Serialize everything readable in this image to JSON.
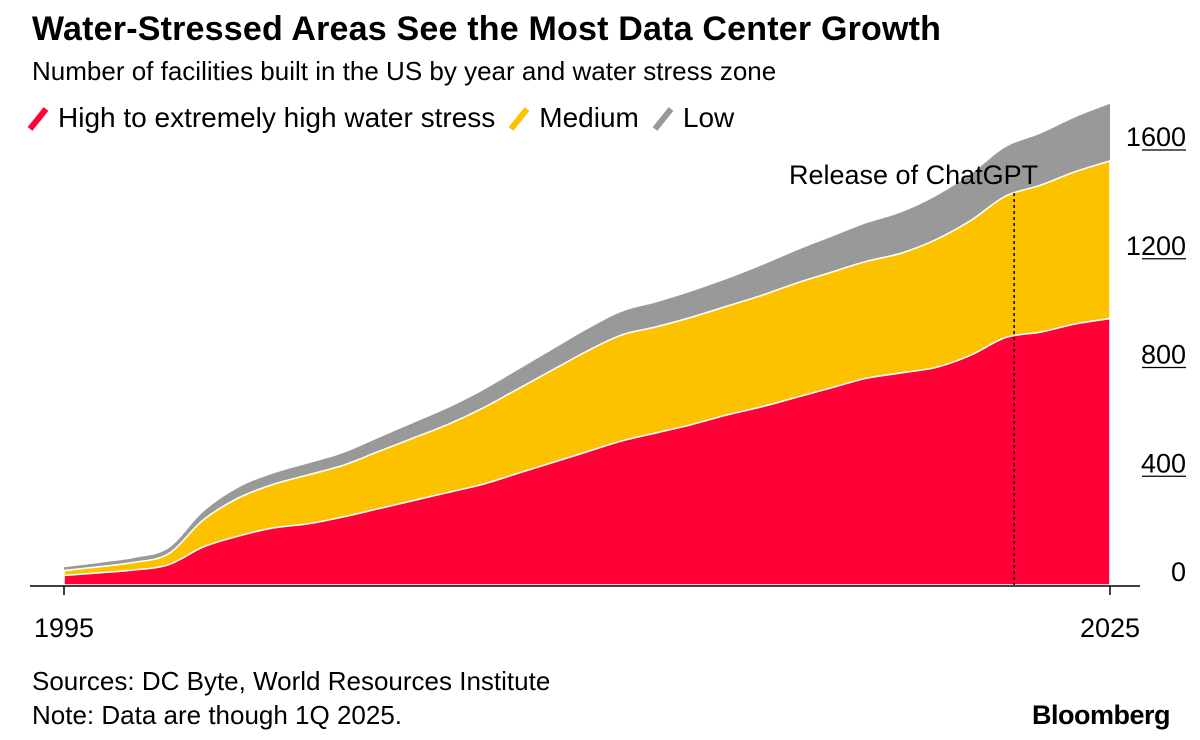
{
  "header": {
    "title": "Water-Stressed Areas See the Most Data Center Growth",
    "subtitle": "Number of facilities built in the US by year and water stress zone"
  },
  "footer": {
    "sources": "Sources: DC Byte, World Resources Institute",
    "note": "Note: Data are though 1Q 2025.",
    "brand": "Bloomberg"
  },
  "chart_data": {
    "type": "area",
    "stacked": true,
    "x": [
      1995,
      1996,
      1997,
      1998,
      1999,
      2000,
      2001,
      2002,
      2003,
      2004,
      2005,
      2006,
      2007,
      2008,
      2009,
      2010,
      2011,
      2012,
      2013,
      2014,
      2015,
      2016,
      2017,
      2018,
      2019,
      2020,
      2021,
      2022,
      2023,
      2024,
      2025
    ],
    "x_tick_labels": [
      "1995",
      "2025"
    ],
    "series": [
      {
        "name": "High to extremely high water stress",
        "color": "#ff0037",
        "values": [
          35,
          45,
          55,
          75,
          140,
          180,
          210,
          225,
          250,
          280,
          310,
          340,
          370,
          410,
          450,
          490,
          530,
          560,
          590,
          625,
          655,
          690,
          725,
          760,
          780,
          800,
          845,
          910,
          930,
          960,
          980
        ]
      },
      {
        "name": "Medium",
        "color": "#fcc200",
        "values": [
          18,
          22,
          28,
          40,
          100,
          140,
          160,
          180,
          190,
          210,
          230,
          250,
          280,
          310,
          340,
          370,
          390,
          390,
          395,
          400,
          410,
          420,
          425,
          430,
          440,
          470,
          495,
          520,
          540,
          560,
          580
        ]
      },
      {
        "name": "Low",
        "color": "#999999",
        "values": [
          12,
          14,
          16,
          20,
          30,
          38,
          40,
          42,
          45,
          50,
          55,
          60,
          65,
          70,
          75,
          80,
          85,
          90,
          95,
          100,
          110,
          120,
          130,
          140,
          150,
          160,
          170,
          180,
          190,
          200,
          210
        ]
      }
    ],
    "y_ticks": [
      "0",
      "400",
      "800",
      "1200",
      "1600"
    ],
    "ylim": [
      0,
      1600
    ],
    "annotation": {
      "label": "Release of ChatGPT",
      "x": 2022.25
    },
    "legend_position": "top-left"
  }
}
